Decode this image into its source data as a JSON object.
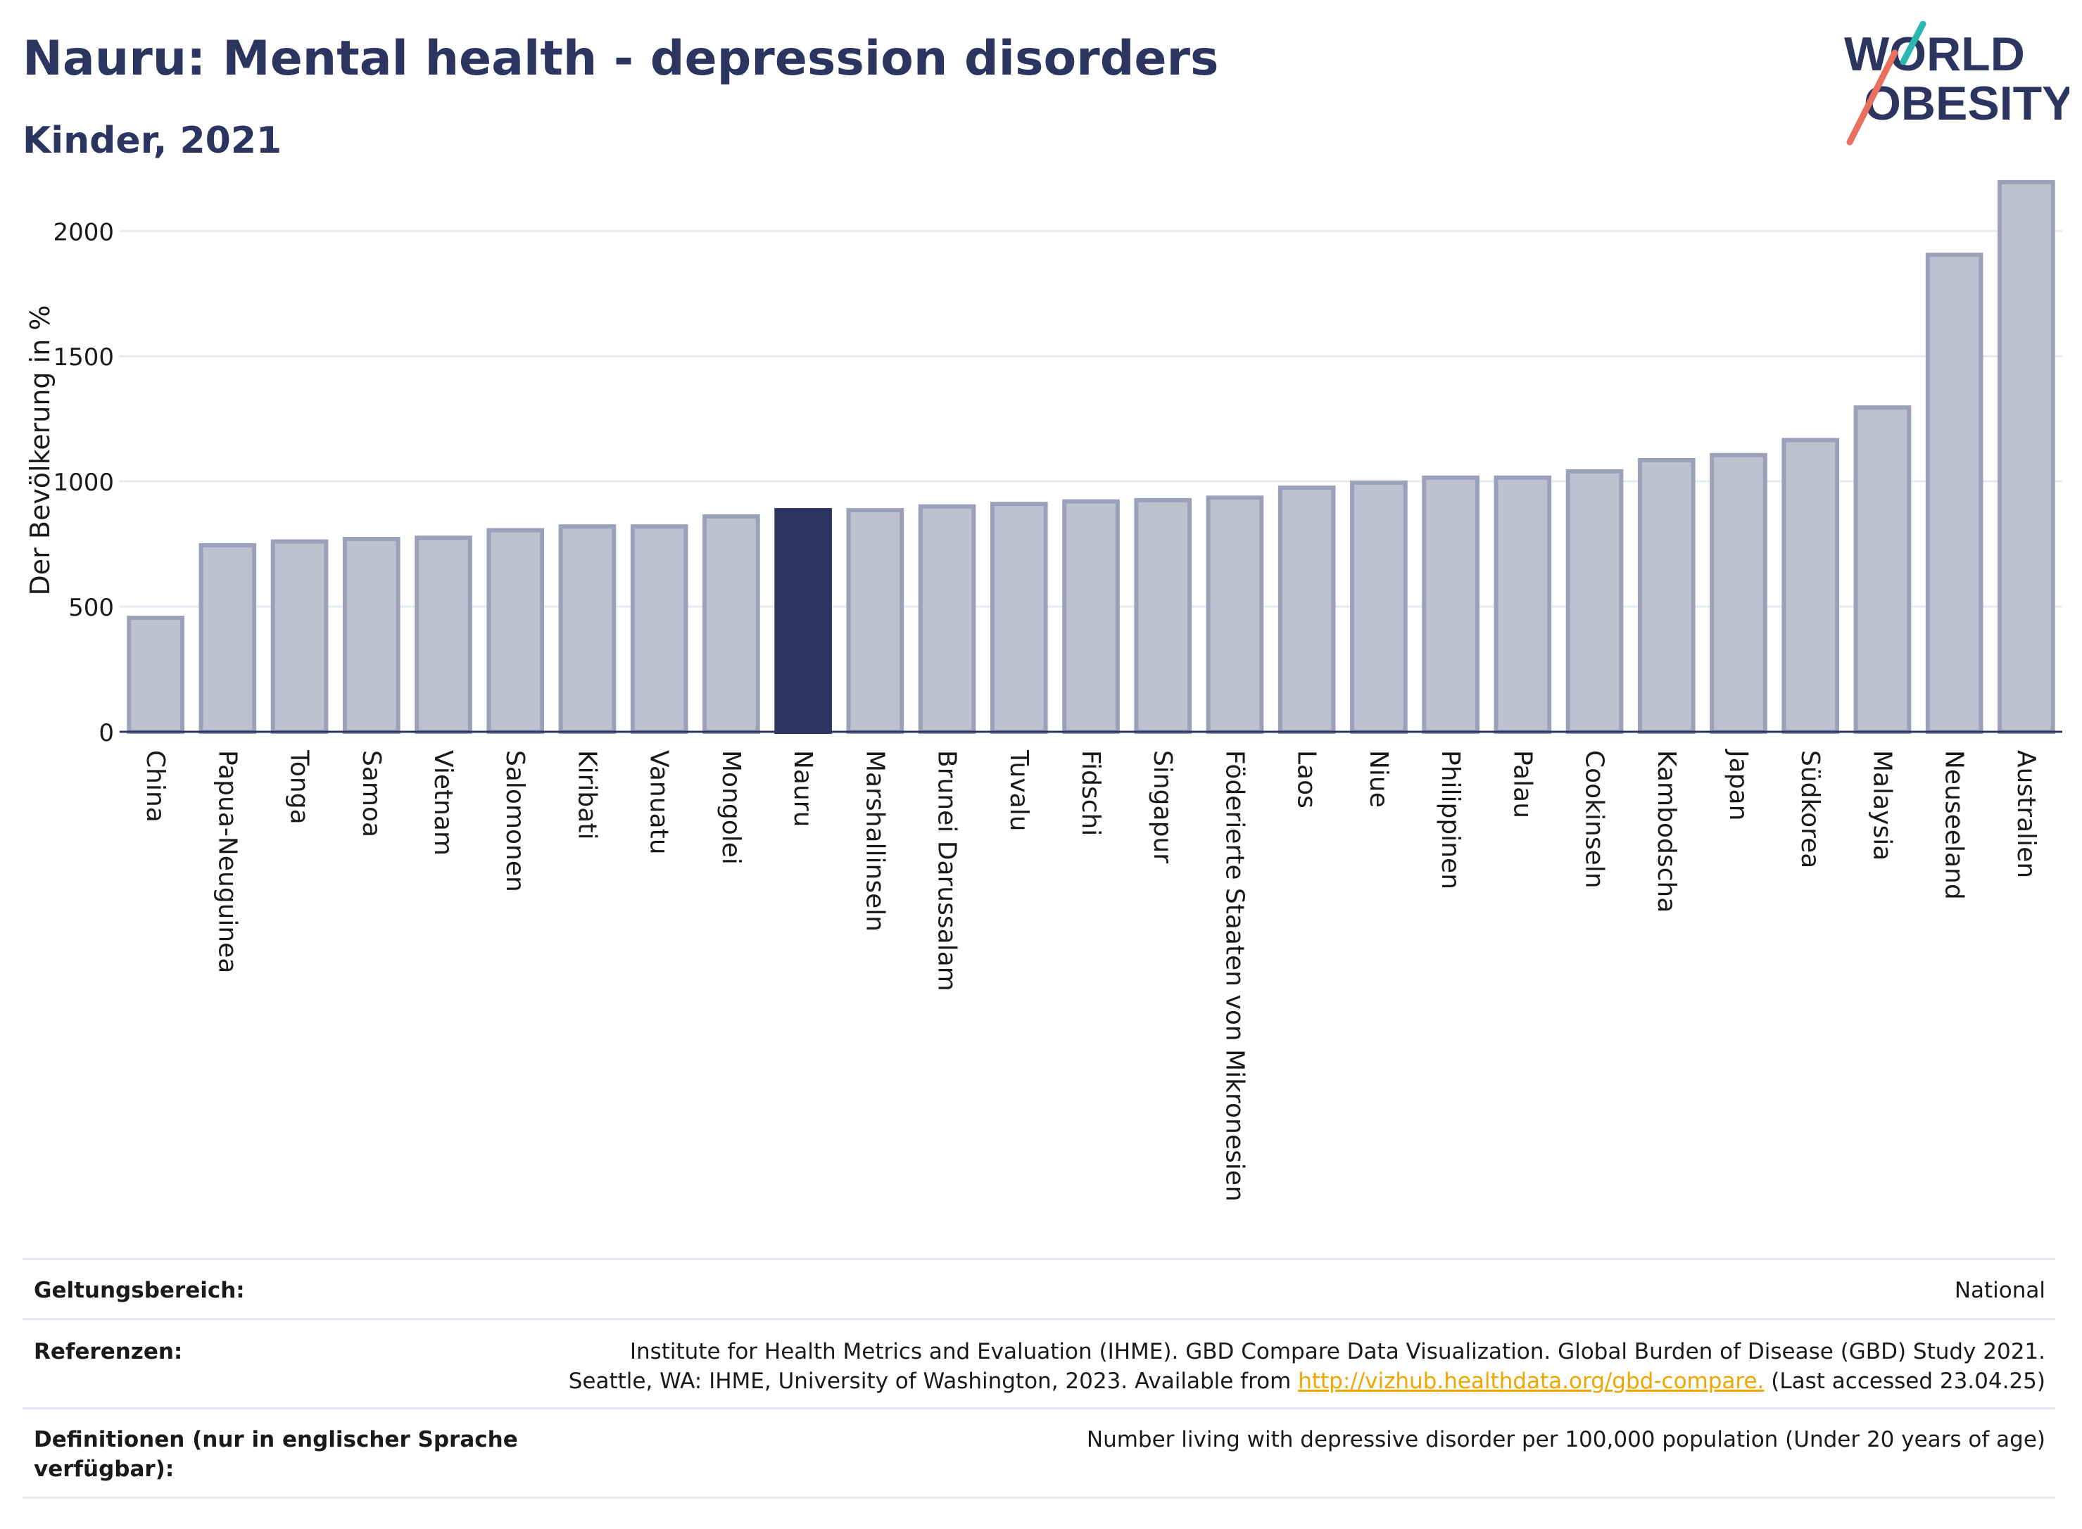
{
  "header": {
    "title": "Nauru: Mental health - depression disorders",
    "subtitle": "Kinder, 2021"
  },
  "logo": {
    "line1": "WORLD",
    "line2": "OBESITY"
  },
  "colors": {
    "highlight": "#2b3560",
    "bar_fill": "#bec2d0",
    "bar_stroke": "#9aa1b9",
    "text_dark": "#2b3560",
    "link": "#f0a500",
    "logo_slash_red": "#e8705f",
    "logo_slash_teal": "#2bb6b0"
  },
  "chart_data": {
    "type": "bar",
    "ylabel": "Der Bevölkerung in %",
    "xlabel": "",
    "ylim": [
      0,
      2220
    ],
    "yticks": [
      0,
      500,
      1000,
      1500,
      2000
    ],
    "grid": true,
    "highlight": "Nauru",
    "categories": [
      "China",
      "Papua-Neuguinea",
      "Tonga",
      "Samoa",
      "Vietnam",
      "Salomonen",
      "Kiribati",
      "Vanuatu",
      "Mongolei",
      "Nauru",
      "Marshallinseln",
      "Brunei Darussalam",
      "Tuvalu",
      "Fidschi",
      "Singapur",
      "Föderierte Staaten von Mikronesien",
      "Laos",
      "Niue",
      "Philippinen",
      "Palau",
      "Cookinseln",
      "Kambodscha",
      "Japan",
      "Südkorea",
      "Malaysia",
      "Neuseeland",
      "Australien"
    ],
    "values": [
      455,
      745,
      760,
      770,
      775,
      805,
      820,
      820,
      860,
      885,
      885,
      900,
      910,
      920,
      925,
      935,
      975,
      995,
      1015,
      1015,
      1040,
      1085,
      1105,
      1165,
      1295,
      1905,
      2195
    ]
  },
  "footer": {
    "scope_label": "Geltungsbereich:",
    "scope_value": "National",
    "references_label": "Referenzen:",
    "references_line1": "Institute for Health Metrics and Evaluation (IHME). GBD Compare Data Visualization. Global Burden of Disease (GBD) Study 2021.",
    "references_line2_pre": "Seattle, WA: IHME, University of Washington, 2023. Available from ",
    "references_link": "http://vizhub.healthdata.org/gbd-compare.",
    "references_line2_post": " (Last accessed 23.04.25)",
    "definitions_label": "Definitionen (nur in englischer Sprache verfügbar):",
    "definitions_value": "Number living with depressive disorder per 100,000 population (Under 20 years of age)"
  }
}
